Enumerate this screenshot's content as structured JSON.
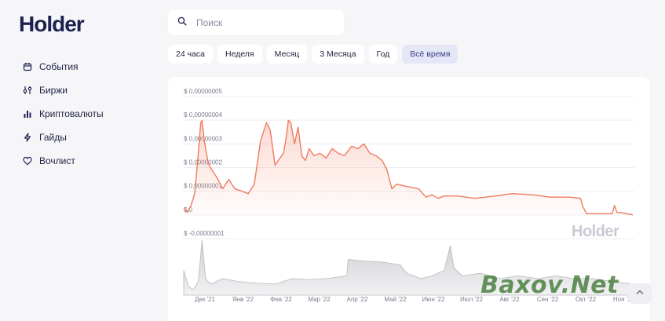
{
  "brand": {
    "logo_text": "Holder",
    "watermark": "Holder",
    "overlay_logo": "Baxov.Net"
  },
  "search": {
    "placeholder": "Поиск",
    "value": ""
  },
  "sidebar": {
    "items": [
      {
        "label": "События",
        "icon": "calendar-icon"
      },
      {
        "label": "Биржи",
        "icon": "exchange-icon"
      },
      {
        "label": "Криптовалюты",
        "icon": "bar-chart-icon"
      },
      {
        "label": "Гайды",
        "icon": "bolt-icon"
      },
      {
        "label": "Вочлист",
        "icon": "heart-icon"
      }
    ]
  },
  "range_tabs": {
    "items": [
      "24 часа",
      "Неделя",
      "Месяц",
      "3 Месяца",
      "Год",
      "Всё время"
    ],
    "active": "Всё время"
  },
  "colors": {
    "accent": "#f07a5e",
    "navy": "#1e2150",
    "active_tab_bg": "#e5e6f6",
    "volume": "#c9c9cf"
  },
  "chart_data": {
    "type": "area",
    "title": "",
    "xlabel": "",
    "ylabel": "",
    "y_tick_labels": [
      "$ 0,00000005",
      "$ 0,00000004",
      "$ 0,00000003",
      "$ 0,00000002",
      "$ 0,00000001",
      "$ 0",
      "$ -0,00000001"
    ],
    "y_ticks": [
      5e-08,
      4e-08,
      3e-08,
      2e-08,
      1e-08,
      0,
      -1e-08
    ],
    "ylim": [
      -1e-08,
      5e-08
    ],
    "x_tick_labels": [
      "Дек '21",
      "Янв '22",
      "Фев '22",
      "Мар '22",
      "Апр '22",
      "Май '22",
      "Июн '22",
      "Июл '22",
      "Авг '22",
      "Сен '22",
      "Окт '22",
      "Ноя '22"
    ],
    "xlim": [
      "2021-11-18",
      "2022-11-22"
    ],
    "grid": true,
    "series": [
      {
        "x": [
          "2021-11-18",
          "2021-11-21",
          "2021-11-24",
          "2021-11-27",
          "2021-11-30",
          "2021-12-02",
          "2021-12-03",
          "2021-12-05",
          "2021-12-08",
          "2021-12-11",
          "2021-12-15",
          "2021-12-20",
          "2021-12-25",
          "2021-12-30",
          "2022-01-05",
          "2022-01-10",
          "2022-01-15",
          "2022-01-20",
          "2022-01-25",
          "2022-01-28",
          "2022-02-01",
          "2022-02-05",
          "2022-02-08",
          "2022-02-10",
          "2022-02-12",
          "2022-02-14",
          "2022-02-17",
          "2022-02-20",
          "2022-02-23",
          "2022-02-26",
          "2022-03-01",
          "2022-03-05",
          "2022-03-10",
          "2022-03-15",
          "2022-03-20",
          "2022-03-25",
          "2022-03-30",
          "2022-04-05",
          "2022-04-10",
          "2022-04-15",
          "2022-04-20",
          "2022-04-25",
          "2022-04-30",
          "2022-05-04",
          "2022-05-08",
          "2022-05-12",
          "2022-05-16",
          "2022-05-20",
          "2022-05-25",
          "2022-05-30",
          "2022-06-05",
          "2022-06-10",
          "2022-06-15",
          "2022-06-20",
          "2022-07-01",
          "2022-07-15",
          "2022-08-01",
          "2022-08-15",
          "2022-09-01",
          "2022-09-15",
          "2022-10-01",
          "2022-10-10",
          "2022-10-12",
          "2022-10-15",
          "2022-10-20",
          "2022-11-01",
          "2022-11-05",
          "2022-11-07",
          "2022-11-09",
          "2022-11-12",
          "2022-11-22"
        ],
        "values": [
          3e-09,
          1e-09,
          4e-09,
          9e-09,
          2.6e-08,
          3.9e-08,
          4e-08,
          3.1e-08,
          2.2e-08,
          1.9e-08,
          1.6e-08,
          1.1e-08,
          1.5e-08,
          1.1e-08,
          1e-08,
          9e-09,
          1.3e-08,
          3.1e-08,
          3.9e-08,
          3.6e-08,
          2.1e-08,
          2.4e-08,
          2.6e-08,
          3.2e-08,
          4e-08,
          3.9e-08,
          3e-08,
          3.7e-08,
          2.5e-08,
          2.3e-08,
          2.8e-08,
          2.5e-08,
          2.6e-08,
          2.4e-08,
          2.8e-08,
          2.6e-08,
          2.5e-08,
          2.9e-08,
          2.8e-08,
          3e-08,
          2.6e-08,
          2.5e-08,
          2.3e-08,
          1.9e-08,
          1.1e-08,
          1.3e-08,
          1.25e-08,
          1.2e-08,
          1.15e-08,
          1.1e-08,
          7.5e-09,
          8.5e-09,
          7e-09,
          8e-09,
          8e-09,
          7e-09,
          8e-09,
          9e-09,
          8.5e-09,
          7.5e-09,
          7.5e-09,
          7e-09,
          3.5e-09,
          5e-10,
          5e-10,
          5e-10,
          5e-10,
          4e-09,
          1e-09,
          1e-09,
          0.0
        ]
      }
    ],
    "volume": {
      "x": [
        "2021-11-18",
        "2021-11-22",
        "2021-11-26",
        "2021-11-30",
        "2021-12-03",
        "2021-12-06",
        "2021-12-10",
        "2021-12-20",
        "2022-01-01",
        "2022-01-15",
        "2022-02-01",
        "2022-02-15",
        "2022-03-01",
        "2022-03-15",
        "2022-04-01",
        "2022-04-02",
        "2022-04-15",
        "2022-05-01",
        "2022-05-15",
        "2022-05-20",
        "2022-06-01",
        "2022-06-10",
        "2022-06-20",
        "2022-06-25",
        "2022-06-28",
        "2022-07-05",
        "2022-07-20",
        "2022-08-05",
        "2022-08-20",
        "2022-09-05",
        "2022-09-20",
        "2022-10-05",
        "2022-10-20",
        "2022-11-05",
        "2022-11-22"
      ],
      "values": [
        0.45,
        0.15,
        0.1,
        0.25,
        1.0,
        0.3,
        0.2,
        0.3,
        0.25,
        0.22,
        0.2,
        0.3,
        0.28,
        0.3,
        0.35,
        0.65,
        0.62,
        0.6,
        0.55,
        0.4,
        0.3,
        0.35,
        0.45,
        0.9,
        0.5,
        0.35,
        0.4,
        0.3,
        0.35,
        0.3,
        0.35,
        0.3,
        0.3,
        0.25,
        0.2
      ]
    }
  }
}
